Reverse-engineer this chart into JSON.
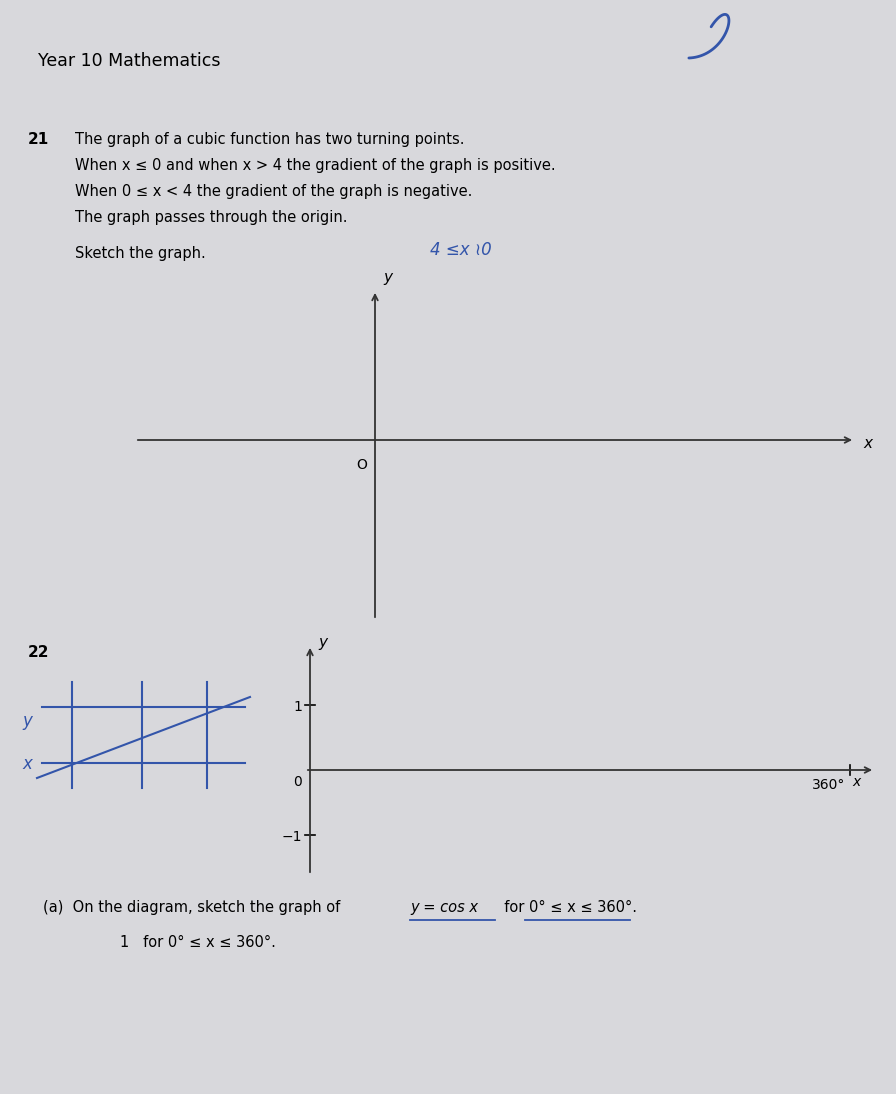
{
  "bg_color": "#d8d8dc",
  "title": "Year 10 Mathematics",
  "title_fontsize": 12,
  "q21_number": "21",
  "q21_line1": "The graph of a cubic function has two turning points.",
  "q21_line2": "When x ≤ 0 and when x > 4 the gradient of the graph is positive.",
  "q21_line3": "When 0 ≤ x < 4 the gradient of the graph is negative.",
  "q21_line4": "The graph passes through the origin.",
  "q21_sketch": "Sketch the graph.",
  "handwritten_note": "4 ≤x ≀0",
  "q22_number": "22",
  "q22a_text": "(a)  On the diagram, sketch the graph of",
  "q22a_formula": "y = cos x",
  "q22a_text2": "  for 0° ≤ x ≤ 360°.",
  "q22a_line2": "1   for 0° ≤ x ≤ 360°.",
  "ax1_origin_label": "O",
  "ax1_xlabel": "x",
  "ax1_ylabel": "y",
  "ax2_origin_label": "0",
  "ax2_xlabel": "360°",
  "ax2_x_label2": "x",
  "ax2_ylabel": "y",
  "ax2_ytick1": "1",
  "ax2_ytick_minus1": "−1",
  "hw_y": "y",
  "hw_x": "x"
}
